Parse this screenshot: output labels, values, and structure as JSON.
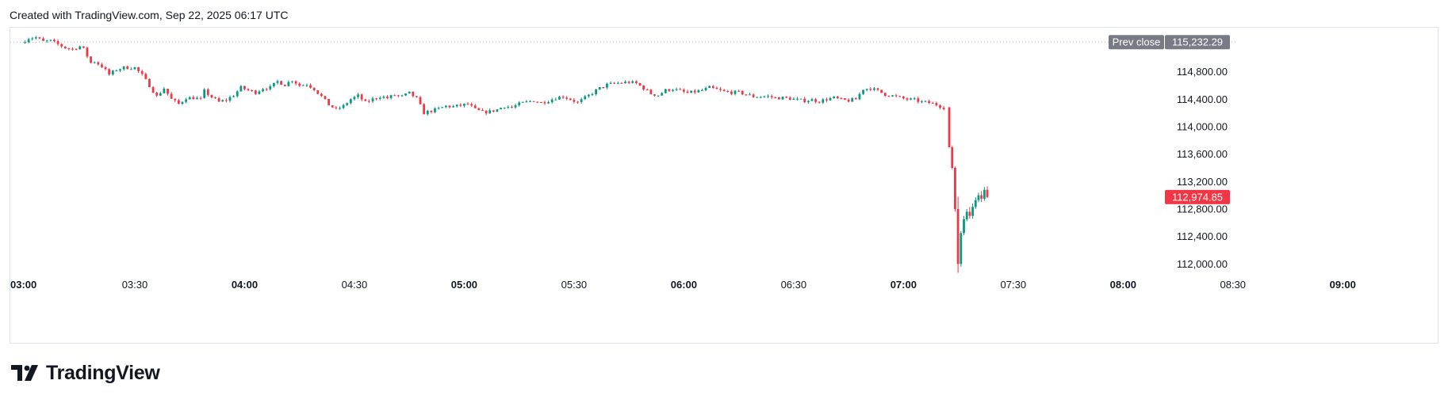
{
  "header": {
    "text": "Created with TradingView.com, Sep 22, 2025 06:17 UTC"
  },
  "brand": {
    "name": "TradingView",
    "icon": "tradingview-logo-icon"
  },
  "colors": {
    "up": "#089981",
    "down": "#f23645",
    "prev_close_bg": "#787b86",
    "last_price_bg": "#f23645",
    "grid_dots": "#b2b5be",
    "text": "#131722"
  },
  "chart_data": {
    "type": "candlestick",
    "x_axis": {
      "range": [
        "03:00",
        "09:20"
      ],
      "ticks": [
        {
          "label": "03:00",
          "minutes": 0,
          "bold": true
        },
        {
          "label": "03:30",
          "minutes": 30,
          "bold": false
        },
        {
          "label": "04:00",
          "minutes": 60,
          "bold": true
        },
        {
          "label": "04:30",
          "minutes": 90,
          "bold": false
        },
        {
          "label": "05:00",
          "minutes": 120,
          "bold": true
        },
        {
          "label": "05:30",
          "minutes": 150,
          "bold": false
        },
        {
          "label": "06:00",
          "minutes": 180,
          "bold": true
        },
        {
          "label": "06:30",
          "minutes": 210,
          "bold": false
        },
        {
          "label": "07:00",
          "minutes": 240,
          "bold": true
        },
        {
          "label": "07:30",
          "minutes": 270,
          "bold": false
        },
        {
          "label": "08:00",
          "minutes": 300,
          "bold": true
        },
        {
          "label": "08:30",
          "minutes": 330,
          "bold": false
        },
        {
          "label": "09:00",
          "minutes": 360,
          "bold": true
        }
      ]
    },
    "y_axis": {
      "range": [
        111750,
        115350
      ],
      "ticks": [
        "114,800.00",
        "114,400.00",
        "114,000.00",
        "113,600.00",
        "113,200.00",
        "112,800.00",
        "112,400.00",
        "112,000.00"
      ],
      "tick_values": [
        114800,
        114400,
        114000,
        113600,
        113200,
        112800,
        112400,
        112000
      ]
    },
    "prev_close": {
      "label": "Prev close",
      "value": 115232.29,
      "value_text": "115,232.29"
    },
    "last_price": {
      "value": 112974.85,
      "value_text": "112,974.85"
    },
    "anchors": [
      [
        0,
        115220
      ],
      [
        2,
        115290
      ],
      [
        4,
        115300
      ],
      [
        6,
        115240
      ],
      [
        8,
        115250
      ],
      [
        10,
        115200
      ],
      [
        12,
        115150
      ],
      [
        14,
        115130
      ],
      [
        16,
        115170
      ],
      [
        17,
        115130
      ],
      [
        19,
        114930
      ],
      [
        20,
        114950
      ],
      [
        22,
        114880
      ],
      [
        24,
        114760
      ],
      [
        26,
        114830
      ],
      [
        28,
        114860
      ],
      [
        31,
        114860
      ],
      [
        33,
        114750
      ],
      [
        35,
        114600
      ],
      [
        37,
        114440
      ],
      [
        39,
        114560
      ],
      [
        41,
        114400
      ],
      [
        43,
        114330
      ],
      [
        45,
        114420
      ],
      [
        47,
        114420
      ],
      [
        49,
        114400
      ],
      [
        50,
        114520
      ],
      [
        52,
        114430
      ],
      [
        54,
        114360
      ],
      [
        56,
        114390
      ],
      [
        58,
        114460
      ],
      [
        60,
        114570
      ],
      [
        62,
        114530
      ],
      [
        64,
        114500
      ],
      [
        66,
        114560
      ],
      [
        68,
        114570
      ],
      [
        70,
        114660
      ],
      [
        72,
        114610
      ],
      [
        74,
        114680
      ],
      [
        76,
        114600
      ],
      [
        78,
        114620
      ],
      [
        80,
        114550
      ],
      [
        82,
        114440
      ],
      [
        84,
        114320
      ],
      [
        86,
        114250
      ],
      [
        88,
        114300
      ],
      [
        90,
        114400
      ],
      [
        92,
        114450
      ],
      [
        94,
        114350
      ],
      [
        96,
        114400
      ],
      [
        98,
        114440
      ],
      [
        100,
        114420
      ],
      [
        102,
        114460
      ],
      [
        104,
        114440
      ],
      [
        106,
        114490
      ],
      [
        108,
        114410
      ],
      [
        110,
        114200
      ],
      [
        112,
        114230
      ],
      [
        114,
        114260
      ],
      [
        116,
        114300
      ],
      [
        118,
        114290
      ],
      [
        120,
        114310
      ],
      [
        122,
        114330
      ],
      [
        124,
        114250
      ],
      [
        126,
        114210
      ],
      [
        128,
        114220
      ],
      [
        130,
        114250
      ],
      [
        132,
        114300
      ],
      [
        134,
        114280
      ],
      [
        136,
        114330
      ],
      [
        138,
        114360
      ],
      [
        140,
        114380
      ],
      [
        142,
        114350
      ],
      [
        144,
        114380
      ],
      [
        146,
        114420
      ],
      [
        148,
        114440
      ],
      [
        150,
        114400
      ],
      [
        152,
        114350
      ],
      [
        154,
        114420
      ],
      [
        156,
        114490
      ],
      [
        158,
        114560
      ],
      [
        160,
        114610
      ],
      [
        162,
        114630
      ],
      [
        164,
        114640
      ],
      [
        166,
        114650
      ],
      [
        168,
        114630
      ],
      [
        170,
        114560
      ],
      [
        172,
        114480
      ],
      [
        174,
        114460
      ],
      [
        176,
        114530
      ],
      [
        178,
        114550
      ],
      [
        180,
        114520
      ],
      [
        182,
        114490
      ],
      [
        184,
        114510
      ],
      [
        186,
        114530
      ],
      [
        188,
        114570
      ],
      [
        190,
        114540
      ],
      [
        192,
        114510
      ],
      [
        194,
        114500
      ],
      [
        196,
        114500
      ],
      [
        198,
        114470
      ],
      [
        200,
        114440
      ],
      [
        202,
        114440
      ],
      [
        204,
        114440
      ],
      [
        206,
        114420
      ],
      [
        208,
        114420
      ],
      [
        210,
        114410
      ],
      [
        212,
        114390
      ],
      [
        214,
        114380
      ],
      [
        216,
        114390
      ],
      [
        218,
        114370
      ],
      [
        220,
        114400
      ],
      [
        222,
        114420
      ],
      [
        224,
        114390
      ],
      [
        226,
        114380
      ],
      [
        228,
        114400
      ],
      [
        230,
        114550
      ],
      [
        232,
        114560
      ],
      [
        234,
        114520
      ],
      [
        236,
        114470
      ],
      [
        238,
        114450
      ],
      [
        240,
        114420
      ],
      [
        242,
        114400
      ],
      [
        244,
        114390
      ],
      [
        246,
        114360
      ],
      [
        248,
        114350
      ],
      [
        250,
        114320
      ],
      [
        252,
        114280
      ]
    ],
    "final_move": [
      [
        252.5,
        114280,
        113700,
        113700,
        114290
      ],
      [
        253.3,
        113700,
        113400,
        113380,
        113720
      ],
      [
        254.1,
        113400,
        112800,
        112760,
        113420
      ],
      [
        254.9,
        112800,
        112000,
        111870,
        112980
      ],
      [
        255.7,
        112000,
        112450,
        111960,
        112480
      ],
      [
        256.5,
        112450,
        112650,
        112420,
        112700
      ],
      [
        257.3,
        112650,
        112760,
        112620,
        112800
      ],
      [
        258.1,
        112760,
        112700,
        112660,
        112830
      ],
      [
        258.9,
        112700,
        112830,
        112660,
        112880
      ],
      [
        259.7,
        112830,
        112930,
        112800,
        112970
      ],
      [
        260.5,
        112930,
        113000,
        112900,
        113040
      ],
      [
        261.3,
        113000,
        112950,
        112900,
        113060
      ],
      [
        262.1,
        112950,
        113080,
        112920,
        113120
      ],
      [
        262.9,
        113080,
        112974.85,
        112960,
        113130
      ]
    ]
  }
}
